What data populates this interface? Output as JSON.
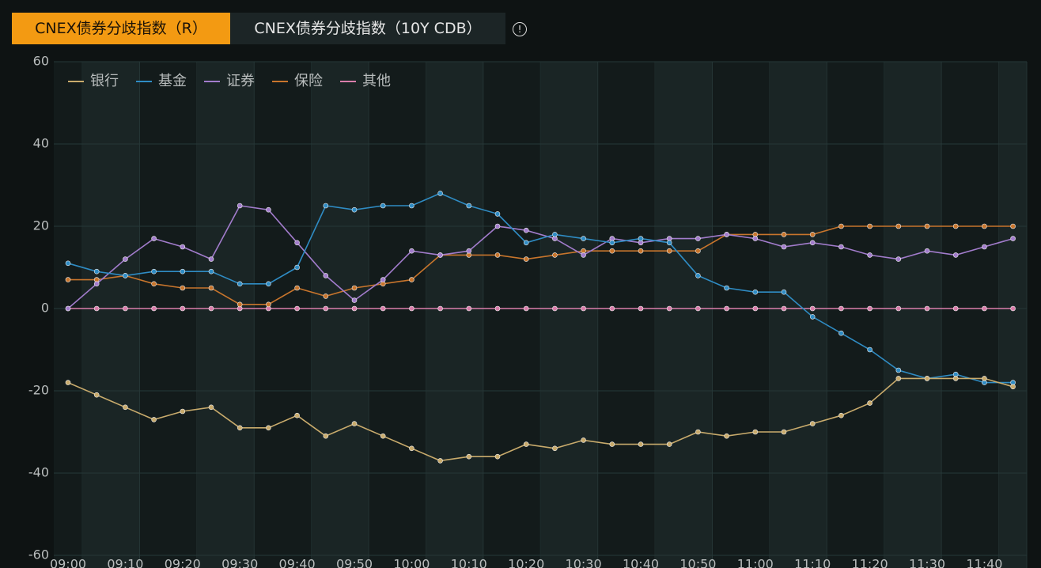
{
  "tabs": [
    "CNEX债券分歧指数（R）",
    "CNEX债券分歧指数（10Y CDB）"
  ],
  "chart_data": {
    "type": "line",
    "categories": [
      "09:00",
      null,
      "09:10",
      null,
      "09:20",
      null,
      "09:30",
      null,
      "09:40",
      null,
      "09:50",
      null,
      "10:00",
      null,
      "10:10",
      null,
      "10:20",
      null,
      "10:30",
      null,
      "10:40",
      null,
      "10:50",
      null,
      "11:00",
      null,
      "11:10",
      null,
      "11:20",
      null,
      "11:30",
      null,
      "11:40",
      null
    ],
    "series": [
      {
        "name": "银行",
        "color": "#c9ab6c",
        "values": [
          -18,
          -21,
          -24,
          -27,
          -25,
          -24,
          -29,
          -29,
          -26,
          -31,
          -28,
          -31,
          -34,
          -37,
          -36,
          -36,
          -33,
          -34,
          -32,
          -33,
          -33,
          -33,
          -30,
          -31,
          -30,
          -30,
          -28,
          -26,
          -23,
          -17,
          -17,
          -17,
          -17,
          -19
        ]
      },
      {
        "name": "基金",
        "color": "#2f8cc4",
        "values": [
          11,
          9,
          8,
          9,
          9,
          9,
          6,
          6,
          10,
          25,
          24,
          25,
          25,
          28,
          25,
          23,
          16,
          18,
          17,
          16,
          17,
          16,
          8,
          5,
          4,
          4,
          -2,
          -6,
          -10,
          -15,
          -17,
          -16,
          -18,
          -18
        ]
      },
      {
        "name": "证券",
        "color": "#a27ccc",
        "values": [
          0,
          6,
          12,
          17,
          15,
          12,
          25,
          24,
          16,
          8,
          2,
          7,
          14,
          13,
          14,
          20,
          19,
          17,
          13,
          17,
          16,
          17,
          17,
          18,
          17,
          15,
          16,
          15,
          13,
          12,
          14,
          13,
          15,
          17
        ]
      },
      {
        "name": "保险",
        "color": "#c8752c",
        "values": [
          7,
          7,
          8,
          6,
          5,
          5,
          1,
          1,
          5,
          3,
          5,
          6,
          7,
          13,
          13,
          13,
          12,
          13,
          14,
          14,
          14,
          14,
          14,
          18,
          18,
          18,
          18,
          20,
          20,
          20,
          20,
          20,
          20,
          20
        ]
      },
      {
        "name": "其他",
        "color": "#d97eab",
        "values": [
          0,
          0,
          0,
          0,
          0,
          0,
          0,
          0,
          0,
          0,
          0,
          0,
          0,
          0,
          0,
          0,
          0,
          0,
          0,
          0,
          0,
          0,
          0,
          0,
          0,
          0,
          0,
          0,
          0,
          0,
          0,
          0,
          0,
          0
        ]
      }
    ],
    "ylim": [
      -60,
      60
    ],
    "yticks": [
      -60,
      -40,
      -20,
      0,
      20,
      40,
      60
    ],
    "grid": true,
    "legend": "top-left"
  }
}
